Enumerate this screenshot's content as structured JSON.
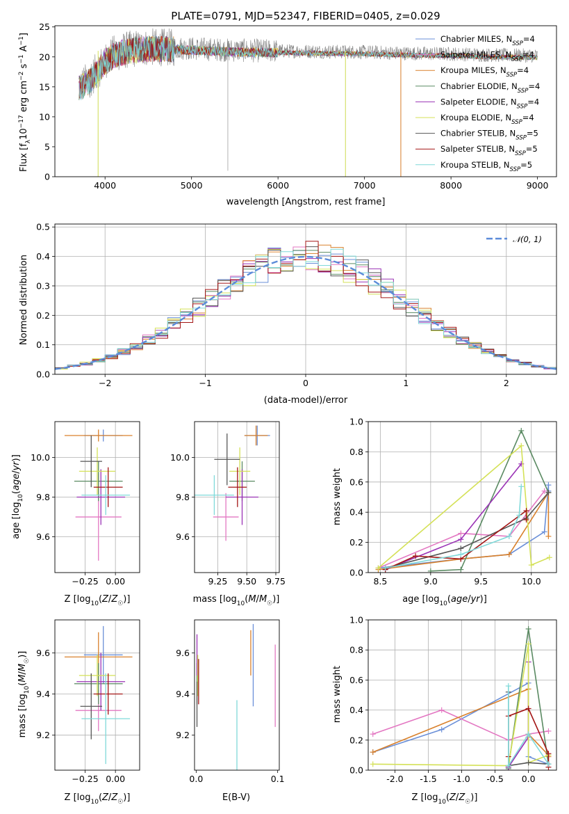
{
  "chart_data": [
    {
      "type": "line",
      "title": "PLATE=0791, MJD=52347, FIBERID=0405, z=0.029",
      "xlabel": "wavelength [Angstrom, rest frame]",
      "ylabel": "Flux [f_λ 10^-17 erg cm^-2 s^-1 A^-1]",
      "xlim": [
        3420,
        9220
      ],
      "ylim": [
        0,
        25.2
      ],
      "xticks": [
        4000,
        5000,
        6000,
        7000,
        8000,
        9000
      ],
      "yticks": [
        0,
        5,
        10,
        15,
        20,
        25
      ],
      "grid": false,
      "legend_position": "top-right",
      "series": [
        {
          "name": "Chabrier MILES, N_SSP=4",
          "color": "#6a8fd8"
        },
        {
          "name": "Salpeter MILES, N_SSP=4",
          "color": "#e377c2"
        },
        {
          "name": "Kroupa MILES, N_SSP=4",
          "color": "#d9812c"
        },
        {
          "name": "Chabrier ELODIE, N_SSP=4",
          "color": "#5a8a62"
        },
        {
          "name": "Salpeter ELODIE, N_SSP=4",
          "color": "#9a32b5"
        },
        {
          "name": "Kroupa ELODIE, N_SSP=4",
          "color": "#d4e157"
        },
        {
          "name": "Chabrier STELIB, N_SSP=5",
          "color": "#555555"
        },
        {
          "name": "Salpeter STELIB, N_SSP=5",
          "color": "#a31515"
        },
        {
          "name": "Kroupa STELIB, N_SSP=5",
          "color": "#7fd9d9"
        }
      ],
      "data_series": {
        "name": "data",
        "color": "#808080"
      },
      "continuum": {
        "x": [
          3700,
          3800,
          3900,
          4000,
          4100,
          4200,
          4300,
          4400,
          4500,
          4700,
          5000,
          5500,
          6000,
          6500,
          7000,
          7500,
          8000,
          8500,
          9000
        ],
        "y": [
          15,
          16,
          17.5,
          19.5,
          20.5,
          21,
          21.3,
          21.5,
          21.6,
          21.6,
          21.4,
          21.1,
          21.0,
          20.9,
          20.8,
          20.6,
          20.5,
          20.3,
          20.2
        ]
      },
      "spikes": [
        {
          "x": 3920,
          "y": 0
        },
        {
          "x": 5420,
          "y": 1
        },
        {
          "x": 6780,
          "y": 0
        },
        {
          "x": 7420,
          "y": 0
        }
      ]
    },
    {
      "type": "step",
      "xlabel": "(data-model)/error",
      "ylabel": "Normed distribution",
      "xlim": [
        -2.5,
        2.5
      ],
      "ylim": [
        0,
        0.51
      ],
      "xticks": [
        -2,
        -1,
        0,
        1,
        2
      ],
      "yticks": [
        0.0,
        0.1,
        0.2,
        0.3,
        0.4,
        0.5
      ],
      "grid": true,
      "legend_position": "top-right",
      "gaussian": {
        "name": "𝒩(0, 1)",
        "color": "#5b8bd9",
        "mu": 0,
        "sigma": 1
      }
    },
    {
      "type": "errorbar",
      "xlabel": "Z [log10(Z/Z☉)]",
      "ylabel": "age [log10(age/yr)]",
      "xlim": [
        -0.5,
        0.2
      ],
      "ylim": [
        9.42,
        10.18
      ],
      "xticks": [
        -0.25,
        0.0
      ],
      "yticks": [
        9.6,
        9.8,
        10.0
      ],
      "grid": true,
      "points": [
        {
          "x": -0.1,
          "y": 10.11,
          "xerr": 0.16,
          "yerr": 0.03,
          "color": "#6a8fd8"
        },
        {
          "x": -0.14,
          "y": 9.7,
          "xerr": 0.19,
          "yerr": 0.22,
          "color": "#e377c2"
        },
        {
          "x": -0.14,
          "y": 10.11,
          "xerr": 0.28,
          "yerr": 0.03,
          "color": "#d9812c"
        },
        {
          "x": -0.14,
          "y": 9.88,
          "xerr": 0.2,
          "yerr": 0.1,
          "color": "#5a8a62"
        },
        {
          "x": -0.12,
          "y": 9.8,
          "xerr": 0.2,
          "yerr": 0.14,
          "color": "#9a32b5"
        },
        {
          "x": -0.15,
          "y": 9.93,
          "xerr": 0.15,
          "yerr": 0.12,
          "color": "#d4e157"
        },
        {
          "x": -0.2,
          "y": 9.98,
          "xerr": 0.09,
          "yerr": 0.13,
          "color": "#555555"
        },
        {
          "x": -0.06,
          "y": 9.85,
          "xerr": 0.12,
          "yerr": 0.1,
          "color": "#a31515"
        },
        {
          "x": -0.08,
          "y": 9.81,
          "xerr": 0.2,
          "yerr": 0.1,
          "color": "#7fd9d9"
        }
      ]
    },
    {
      "type": "errorbar",
      "xlabel": "mass [log10(M/M☉)]",
      "xlim": [
        9.05,
        9.78
      ],
      "ylim": [
        9.42,
        10.18
      ],
      "xticks": [
        9.25,
        9.5,
        9.75
      ],
      "yticks": [
        9.6,
        9.8,
        10.0
      ],
      "grid": true,
      "points": [
        {
          "x": 9.59,
          "y": 10.11,
          "xerr": 0.11,
          "yerr": 0.05,
          "color": "#6a8fd8"
        },
        {
          "x": 9.32,
          "y": 9.7,
          "xerr": 0.11,
          "yerr": 0.12,
          "color": "#e377c2"
        },
        {
          "x": 9.58,
          "y": 10.11,
          "xerr": 0.1,
          "yerr": 0.05,
          "color": "#d9812c"
        },
        {
          "x": 9.46,
          "y": 9.88,
          "xerr": 0.11,
          "yerr": 0.1,
          "color": "#5a8a62"
        },
        {
          "x": 9.46,
          "y": 9.8,
          "xerr": 0.14,
          "yerr": 0.14,
          "color": "#9a32b5"
        },
        {
          "x": 9.44,
          "y": 9.93,
          "xerr": 0.09,
          "yerr": 0.12,
          "color": "#d4e157"
        },
        {
          "x": 9.33,
          "y": 9.99,
          "xerr": 0.11,
          "yerr": 0.13,
          "color": "#555555"
        },
        {
          "x": 9.42,
          "y": 9.85,
          "xerr": 0.08,
          "yerr": 0.1,
          "color": "#a31515"
        },
        {
          "x": 9.22,
          "y": 9.81,
          "xerr": 0.17,
          "yerr": 0.1,
          "color": "#7fd9d9"
        }
      ]
    },
    {
      "type": "line",
      "xlabel": "age [log10(age/yr)]",
      "ylabel": "mass weight",
      "xlim": [
        8.38,
        10.25
      ],
      "ylim": [
        0,
        1.0
      ],
      "xticks": [
        8.5,
        9.0,
        9.5,
        10.0
      ],
      "yticks": [
        0.0,
        0.2,
        0.4,
        0.6,
        0.8,
        1.0
      ],
      "grid": true,
      "series": [
        {
          "color": "#6a8fd8",
          "x": [
            8.48,
            9.3,
            9.78,
            10.13,
            10.17,
            10.17
          ],
          "y": [
            0.03,
            0.09,
            0.12,
            0.27,
            0.58,
            0.54
          ]
        },
        {
          "color": "#e377c2",
          "x": [
            8.48,
            9.3,
            9.78,
            10.13
          ],
          "y": [
            0.03,
            0.26,
            0.24,
            0.54
          ]
        },
        {
          "color": "#d9812c",
          "x": [
            8.48,
            9.3,
            9.78,
            10.17,
            10.17
          ],
          "y": [
            0.02,
            0.09,
            0.12,
            0.53,
            0.24
          ]
        },
        {
          "color": "#5a8a62",
          "x": [
            9.0,
            9.3,
            9.9,
            10.17
          ],
          "y": [
            0.01,
            0.02,
            0.94,
            0.53
          ]
        },
        {
          "color": "#9a32b5",
          "x": [
            8.55,
            9.3,
            9.9
          ],
          "y": [
            0.02,
            0.22,
            0.72
          ]
        },
        {
          "color": "#d4e157",
          "x": [
            8.48,
            9.9,
            10.0,
            10.18
          ],
          "y": [
            0.03,
            0.84,
            0.05,
            0.1
          ]
        },
        {
          "color": "#555555",
          "x": [
            8.55,
            9.3,
            9.95,
            10.17
          ],
          "y": [
            0.03,
            0.16,
            0.36,
            0.53
          ]
        },
        {
          "color": "#a31515",
          "x": [
            8.55,
            8.85,
            9.3,
            9.95,
            9.95
          ],
          "y": [
            0.02,
            0.11,
            0.09,
            0.41,
            0.35
          ]
        },
        {
          "color": "#7fd9d9",
          "x": [
            8.55,
            9.3,
            9.78,
            9.88,
            9.9
          ],
          "y": [
            0.03,
            0.12,
            0.24,
            0.38,
            0.57
          ]
        }
      ]
    },
    {
      "type": "errorbar",
      "xlabel": "Z [log10(Z/Z☉)]",
      "ylabel": "mass [log10(M/M☉)]",
      "xlim": [
        -0.5,
        0.2
      ],
      "ylim": [
        9.03,
        9.76
      ],
      "xticks": [
        -0.25,
        0.0
      ],
      "yticks": [
        9.2,
        9.4,
        9.6
      ],
      "grid": true,
      "points": [
        {
          "x": -0.1,
          "y": 9.59,
          "xerr": 0.16,
          "yerr": 0.14,
          "color": "#6a8fd8"
        },
        {
          "x": -0.14,
          "y": 9.32,
          "xerr": 0.19,
          "yerr": 0.1,
          "color": "#e377c2"
        },
        {
          "x": -0.14,
          "y": 9.58,
          "xerr": 0.28,
          "yerr": 0.12,
          "color": "#d9812c"
        },
        {
          "x": -0.14,
          "y": 9.45,
          "xerr": 0.2,
          "yerr": 0.1,
          "color": "#5a8a62"
        },
        {
          "x": -0.12,
          "y": 9.46,
          "xerr": 0.2,
          "yerr": 0.14,
          "color": "#9a32b5"
        },
        {
          "x": -0.15,
          "y": 9.49,
          "xerr": 0.15,
          "yerr": 0.1,
          "color": "#d4e157"
        },
        {
          "x": -0.2,
          "y": 9.34,
          "xerr": 0.09,
          "yerr": 0.16,
          "color": "#555555"
        },
        {
          "x": -0.06,
          "y": 9.4,
          "xerr": 0.12,
          "yerr": 0.1,
          "color": "#a31515"
        },
        {
          "x": -0.08,
          "y": 9.28,
          "xerr": 0.2,
          "yerr": 0.22,
          "color": "#7fd9d9"
        }
      ]
    },
    {
      "type": "errorbar",
      "xlabel": "E(B-V)",
      "xlim": [
        -0.002,
        0.102
      ],
      "ylim": [
        9.03,
        9.76
      ],
      "xticks": [
        0.0,
        0.1
      ],
      "yticks": [
        9.2,
        9.4,
        9.6
      ],
      "grid": false,
      "points": [
        {
          "x": 0.07,
          "y": 9.54,
          "yerr": 0.2,
          "color": "#6a8fd8"
        },
        {
          "x": 0.097,
          "y": 9.44,
          "yerr": 0.2,
          "color": "#e377c2"
        },
        {
          "x": 0.067,
          "y": 9.6,
          "yerr": 0.11,
          "color": "#d9812c"
        },
        {
          "x": 0.001,
          "y": 9.45,
          "yerr": 0.1,
          "color": "#5a8a62"
        },
        {
          "x": 0.001,
          "y": 9.59,
          "yerr": 0.1,
          "color": "#9a32b5"
        },
        {
          "x": 0.002,
          "y": 9.49,
          "yerr": 0.1,
          "color": "#d4e157"
        },
        {
          "x": 0.001,
          "y": 9.35,
          "yerr": 0.11,
          "color": "#555555"
        },
        {
          "x": 0.003,
          "y": 9.46,
          "yerr": 0.11,
          "color": "#a31515"
        },
        {
          "x": 0.05,
          "y": 9.2,
          "yerr": 0.17,
          "color": "#7fd9d9"
        }
      ]
    },
    {
      "type": "line",
      "xlabel": "Z [log10(Z/Z☉)]",
      "ylabel": "mass weight",
      "xlim": [
        -2.4,
        0.42
      ],
      "ylim": [
        0,
        1.0
      ],
      "xticks": [
        -2.0,
        -1.5,
        -1.0,
        -0.5,
        0.0
      ],
      "yticks": [
        0.0,
        0.2,
        0.4,
        0.6,
        0.8,
        1.0
      ],
      "grid": true,
      "series": [
        {
          "color": "#6a8fd8",
          "x": [
            -2.33,
            -1.3,
            0.0,
            0.0,
            0.3
          ],
          "y": [
            0.12,
            0.27,
            0.58,
            0.09,
            0.04
          ]
        },
        {
          "color": "#e377c2",
          "x": [
            -2.33,
            -1.3,
            -0.3,
            0.0,
            0.3
          ],
          "y": [
            0.24,
            0.4,
            0.2,
            0.24,
            0.26
          ]
        },
        {
          "color": "#d9812c",
          "x": [
            -2.33,
            0.0,
            0.0,
            0.3,
            0.3
          ],
          "y": [
            0.12,
            0.54,
            0.24,
            0.1,
            0.09
          ]
        },
        {
          "color": "#5a8a62",
          "x": [
            -0.3,
            -0.3,
            0.0,
            0.3
          ],
          "y": [
            0.01,
            0.02,
            0.94,
            0.04
          ]
        },
        {
          "color": "#9a32b5",
          "x": [
            -0.3,
            0.0,
            0.0
          ],
          "y": [
            0.02,
            0.22,
            0.72
          ]
        },
        {
          "color": "#d4e157",
          "x": [
            -2.33,
            -0.3,
            0.0,
            0.0,
            0.3
          ],
          "y": [
            0.04,
            0.03,
            0.84,
            0.05,
            0.1
          ]
        },
        {
          "color": "#555555",
          "x": [
            -0.3,
            -0.3,
            0.0,
            0.3
          ],
          "y": [
            0.52,
            0.03,
            0.05,
            0.04
          ]
        },
        {
          "color": "#a31515",
          "x": [
            -0.3,
            -0.3,
            0.0,
            0.3,
            0.3
          ],
          "y": [
            0.09,
            0.36,
            0.41,
            0.11,
            0.02
          ]
        },
        {
          "color": "#7fd9d9",
          "x": [
            -0.3,
            -0.3,
            0.0,
            0.3
          ],
          "y": [
            0.56,
            0.03,
            0.24,
            0.04
          ]
        }
      ]
    }
  ]
}
